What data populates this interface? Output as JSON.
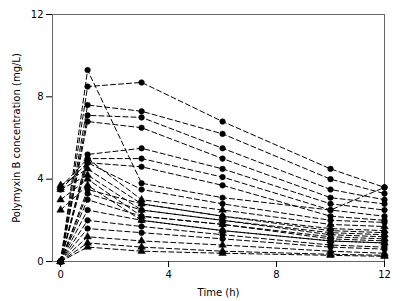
{
  "chart_data": {
    "type": "line",
    "xlabel": "Time (h)",
    "ylabel": "Polymyxin B concentration (mg/L)",
    "xlim": [
      -0.3,
      12
    ],
    "ylim": [
      0,
      12
    ],
    "xticks": [
      0,
      4,
      8,
      12
    ],
    "yticks": [
      0,
      4,
      8,
      12
    ],
    "color": "black",
    "line_style": "dashed",
    "x": [
      0,
      1,
      3,
      6,
      10,
      12
    ],
    "series": [
      {
        "values": [
          0.0,
          9.3,
          3.8,
          3.1,
          2.5,
          3.6
        ],
        "marker": "circle"
      },
      {
        "values": [
          0.0,
          8.5,
          8.7,
          6.8,
          4.5,
          3.6
        ],
        "marker": "circle"
      },
      {
        "values": [
          0.0,
          7.6,
          7.3,
          6.2,
          4.0,
          3.3
        ],
        "marker": "circle"
      },
      {
        "values": [
          0.0,
          7.1,
          7.0,
          5.5,
          3.5,
          3.0
        ],
        "marker": "circle"
      },
      {
        "values": [
          0.0,
          6.8,
          6.5,
          5.0,
          3.1,
          2.8
        ],
        "marker": "circle"
      },
      {
        "values": [
          0.0,
          5.2,
          5.5,
          4.5,
          2.8,
          2.5
        ],
        "marker": "circle"
      },
      {
        "values": [
          0.0,
          5.0,
          5.0,
          4.1,
          2.5,
          2.2
        ],
        "marker": "circle"
      },
      {
        "values": [
          0.0,
          4.8,
          4.6,
          3.7,
          2.2,
          2.0
        ],
        "marker": "circle"
      },
      {
        "values": [
          3.5,
          4.8,
          3.5,
          2.8,
          2.0,
          1.9
        ],
        "marker": "circle"
      },
      {
        "values": [
          3.6,
          5.0,
          3.0,
          2.5,
          1.8,
          1.7
        ],
        "marker": "triangle"
      },
      {
        "values": [
          3.7,
          4.5,
          2.8,
          2.2,
          1.6,
          1.5
        ],
        "marker": "triangle"
      },
      {
        "values": [
          3.5,
          4.2,
          2.5,
          2.0,
          1.4,
          1.3
        ],
        "marker": "triangle"
      },
      {
        "values": [
          3.0,
          4.0,
          2.2,
          1.8,
          1.2,
          1.1
        ],
        "marker": "triangle"
      },
      {
        "values": [
          2.5,
          3.7,
          2.0,
          1.5,
          1.0,
          0.9
        ],
        "marker": "triangle"
      },
      {
        "values": [
          0.0,
          3.5,
          2.8,
          2.2,
          1.5,
          1.4
        ],
        "marker": "circle"
      },
      {
        "values": [
          0.0,
          3.3,
          2.5,
          2.0,
          1.3,
          1.2
        ],
        "marker": "circle"
      },
      {
        "values": [
          0.0,
          3.0,
          2.2,
          1.8,
          1.1,
          1.0
        ],
        "marker": "circle"
      },
      {
        "values": [
          0.0,
          2.5,
          2.0,
          1.5,
          1.0,
          0.9
        ],
        "marker": "circle"
      },
      {
        "values": [
          0.0,
          2.0,
          1.7,
          1.3,
          0.8,
          0.7
        ],
        "marker": "circle"
      },
      {
        "values": [
          0.0,
          1.6,
          1.4,
          1.1,
          0.7,
          0.6
        ],
        "marker": "circle"
      },
      {
        "values": [
          0.0,
          1.2,
          1.0,
          0.8,
          0.5,
          0.4
        ],
        "marker": "triangle"
      },
      {
        "values": [
          0.0,
          0.9,
          0.7,
          0.5,
          0.35,
          0.3
        ],
        "marker": "triangle"
      },
      {
        "values": [
          0.0,
          0.7,
          0.5,
          0.4,
          0.3,
          0.25
        ],
        "marker": "triangle"
      }
    ]
  }
}
